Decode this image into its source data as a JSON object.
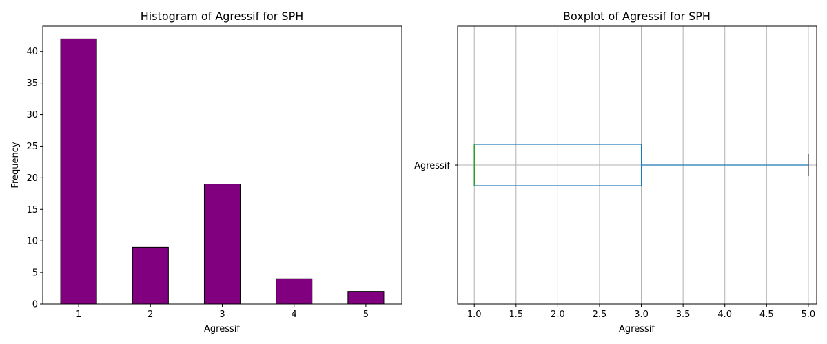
{
  "chart_data": [
    {
      "type": "bar",
      "title": "Histogram of Agressif for SPH",
      "xlabel": "Agressif",
      "ylabel": "Frequency",
      "categories": [
        "1",
        "2",
        "3",
        "4",
        "5"
      ],
      "values": [
        42,
        9,
        19,
        4,
        2
      ],
      "ylim": [
        0,
        44
      ],
      "yticks": [
        0,
        5,
        10,
        15,
        20,
        25,
        30,
        35,
        40
      ],
      "bar_color": "#800080",
      "edge_color": "#000000",
      "grid": false
    },
    {
      "type": "boxplot",
      "orientation": "horizontal",
      "title": "Boxplot of Agressif for SPH",
      "xlabel": "Agressif",
      "category": "Agressif",
      "stats": {
        "min": 1.0,
        "q1": 1.0,
        "median": 1.0,
        "q3": 3.0,
        "max": 5.0
      },
      "xlim": [
        0.8,
        5.1
      ],
      "xticks": [
        "1.0",
        "1.5",
        "2.0",
        "2.5",
        "3.0",
        "3.5",
        "4.0",
        "4.5",
        "5.0"
      ],
      "box_color": "#1f77b4",
      "median_color": "#2ca02c",
      "cap_color": "#000000",
      "grid": true
    }
  ]
}
